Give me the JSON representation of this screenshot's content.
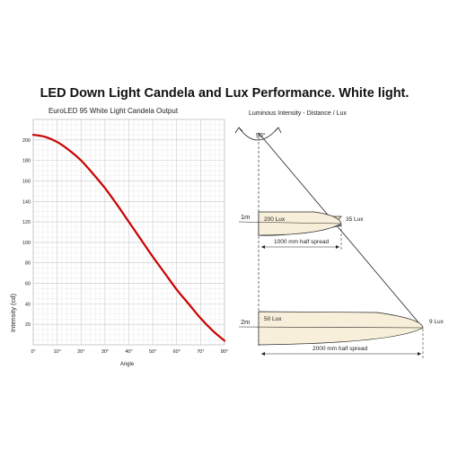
{
  "page_title": "LED Down Light Candela and Lux Performance. White light.",
  "chart_data": {
    "type": "line",
    "title": "EuroLED 95 White Light Candela Output",
    "xlabel": "Angle",
    "ylabel": "Intensity (cd)",
    "xlim": [
      0,
      80
    ],
    "ylim": [
      0,
      220
    ],
    "grid": true,
    "x_tick_labels": [
      "0°",
      "10°",
      "20°",
      "30°",
      "40°",
      "50°",
      "60°",
      "70°",
      "80°"
    ],
    "y_tick_labels": [
      "20",
      "40",
      "60",
      "80",
      "100",
      "120",
      "140",
      "160",
      "180",
      "200"
    ],
    "series": [
      {
        "color": "#cc0000",
        "x": [
          0,
          5,
          10,
          15,
          20,
          25,
          30,
          35,
          40,
          45,
          50,
          55,
          60,
          65,
          70,
          75,
          80
        ],
        "y": [
          205,
          203,
          198,
          190,
          180,
          167,
          153,
          137,
          120,
          103,
          86,
          70,
          54,
          40,
          26,
          14,
          4
        ]
      }
    ]
  },
  "diagram": {
    "title": "Luminous Intensity - Distance / Lux",
    "angle_label": "90°",
    "levels": [
      {
        "distance": "1m",
        "center_lux": "200 Lux",
        "edge_lux": "35 Lux",
        "spread": "1000 mm half spread"
      },
      {
        "distance": "2m",
        "center_lux": "50 Lux",
        "edge_lux": "9 Lux",
        "spread": "2000 mm half spread"
      }
    ],
    "beam_fill": "#f7efd9"
  }
}
